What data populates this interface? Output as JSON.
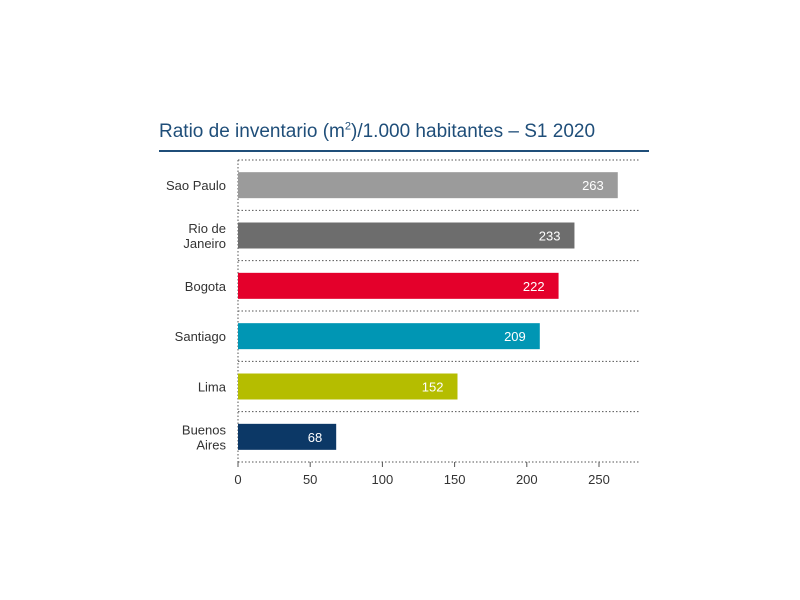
{
  "chart_data": {
    "type": "bar",
    "orientation": "horizontal",
    "title_main": "Ratio de inventario (m",
    "title_sup": "2",
    "title_rest": ")/1.000 habitantes – S1 2020",
    "categories": [
      [
        "Sao Paulo"
      ],
      [
        "Rio de",
        "Janeiro"
      ],
      [
        "Bogota"
      ],
      [
        "Santiago"
      ],
      [
        "Lima"
      ],
      [
        "Buenos",
        "Aires"
      ]
    ],
    "values": [
      263,
      233,
      222,
      209,
      152,
      68
    ],
    "colors": [
      "#9b9b9b",
      "#6d6d6d",
      "#e4002b",
      "#0096b4",
      "#b5bd00",
      "#0c3866"
    ],
    "xticks": [
      0,
      50,
      100,
      150,
      200,
      250
    ],
    "xlim": [
      0,
      280
    ],
    "grid": "dotted-horizontal-separators",
    "legend": "none"
  }
}
